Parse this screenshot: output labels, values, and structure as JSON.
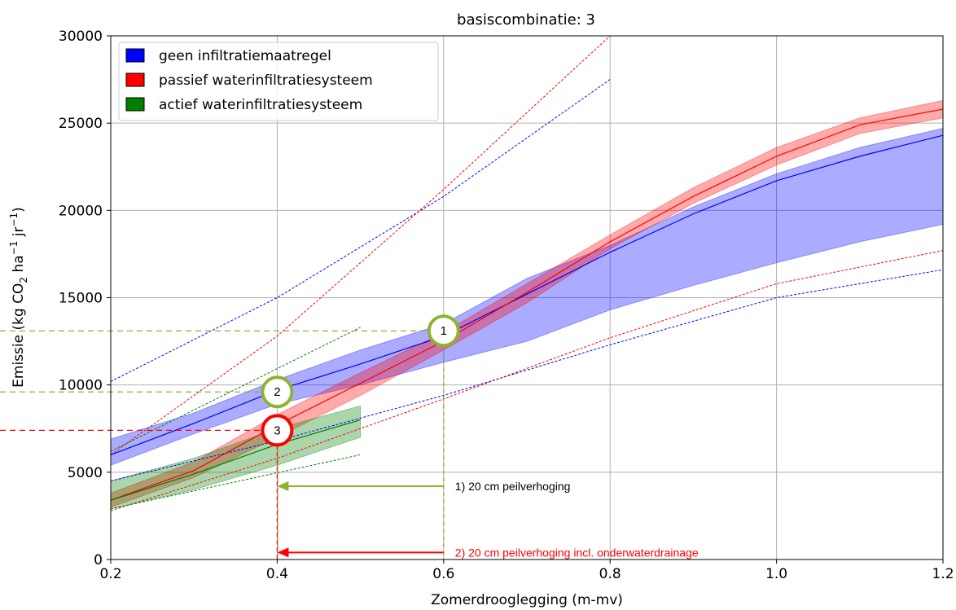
{
  "chart_data": {
    "type": "area",
    "title": "basiscombinatie: 3",
    "xlabel": "Zomerdrooglegging (m-mv)",
    "ylabel_parts": {
      "prefix": "Emissie (kg CO",
      "sub2": "2",
      "mid": " ha",
      "sup1": "−1",
      "mid2": " jr",
      "sup2": "−1",
      "suffix": ")"
    },
    "xlim": [
      0.2,
      1.2
    ],
    "ylim": [
      0,
      30000
    ],
    "x_ticks": [
      0.2,
      0.4,
      0.6,
      0.8,
      1.0,
      1.2
    ],
    "x_tick_labels": [
      "0.2",
      "0.4",
      "0.6",
      "0.8",
      "1.0",
      "1.2"
    ],
    "y_ticks": [
      0,
      5000,
      10000,
      15000,
      20000,
      25000,
      30000
    ],
    "y_tick_labels": [
      "0",
      "5000",
      "10000",
      "15000",
      "20000",
      "25000",
      "30000"
    ],
    "grid": true,
    "legend_position": "top-left",
    "series": [
      {
        "name": "geen infiltratiemaatregel",
        "color": "#0000ff",
        "x": [
          0.2,
          0.3,
          0.4,
          0.5,
          0.6,
          0.7,
          0.8,
          0.9,
          1.0,
          1.1,
          1.2
        ],
        "mean": [
          6000,
          7800,
          9700,
          11200,
          12800,
          15200,
          17600,
          19800,
          21700,
          23100,
          24300
        ],
        "lower": [
          5400,
          7200,
          8900,
          10000,
          11300,
          12500,
          14300,
          15700,
          17000,
          18200,
          19200
        ],
        "upper": [
          6900,
          8400,
          10300,
          12000,
          13500,
          16100,
          18000,
          20200,
          22100,
          23600,
          24700
        ],
        "dash_low": {
          "x": [
            0.2,
            0.4,
            0.6,
            0.8,
            1.0,
            1.2
          ],
          "y": [
            4500,
            6800,
            9400,
            12300,
            15000,
            16600
          ]
        },
        "dash_high": {
          "x": [
            0.2,
            0.4,
            0.6,
            0.8
          ],
          "y": [
            10200,
            15000,
            20800,
            27500
          ]
        }
      },
      {
        "name": "passief waterinfiltratiesysteem",
        "color": "#ff0000",
        "x": [
          0.2,
          0.3,
          0.4,
          0.5,
          0.6,
          0.7,
          0.8,
          0.9,
          1.0,
          1.1,
          1.2
        ],
        "mean": [
          3400,
          5100,
          7700,
          10100,
          12500,
          15300,
          18200,
          20800,
          23100,
          24900,
          25800
        ],
        "lower": [
          3000,
          4700,
          7000,
          9400,
          12000,
          14700,
          17800,
          20400,
          22600,
          24400,
          25300
        ],
        "upper": [
          3800,
          5600,
          8300,
          10700,
          13000,
          15800,
          18600,
          21300,
          23600,
          25300,
          26300
        ],
        "dash_low": {
          "x": [
            0.2,
            0.4,
            0.6,
            0.8,
            1.0,
            1.2
          ],
          "y": [
            2800,
            5800,
            9200,
            12700,
            15800,
            17700
          ]
        },
        "dash_high": {
          "x": [
            0.2,
            0.4,
            0.6,
            0.8
          ],
          "y": [
            6000,
            12800,
            21200,
            30000
          ]
        }
      },
      {
        "name": "actief waterinfiltratiesysteem",
        "color": "#008000",
        "x": [
          0.2,
          0.3,
          0.4,
          0.5
        ],
        "mean": [
          3400,
          4900,
          6600,
          8000
        ],
        "lower": [
          2900,
          4000,
          5400,
          7000
        ],
        "upper": [
          4500,
          5800,
          7500,
          8800
        ],
        "dash_low": {
          "x": [
            0.2,
            0.5
          ],
          "y": [
            2900,
            6000
          ]
        },
        "dash_high": {
          "x": [
            0.2,
            0.5
          ],
          "y": [
            6200,
            13300
          ]
        }
      }
    ],
    "markers": [
      {
        "label": "1",
        "x": 0.6,
        "y": 13100,
        "color": "#8db32f"
      },
      {
        "label": "2",
        "x": 0.4,
        "y": 9600,
        "color": "#8db32f"
      },
      {
        "label": "3",
        "x": 0.4,
        "y": 7400,
        "color": "#ff0000"
      }
    ],
    "reference_lines": [
      {
        "y": 13100,
        "x_end": 0.6,
        "color": "#8db32f"
      },
      {
        "y": 9600,
        "x_end": 0.4,
        "color": "#8db32f"
      },
      {
        "y": 7400,
        "x_end": 0.4,
        "color": "#ff0000"
      }
    ],
    "annotations": [
      {
        "text": "1) 20 cm peilverhoging",
        "from_x": 0.6,
        "to_x": 0.4,
        "y": 4200,
        "color": "#8db32f",
        "text_color": "#000000"
      },
      {
        "text": "2) 20 cm peilverhoging incl. onderwaterdrainage",
        "from_x": 0.6,
        "to_x": 0.4,
        "y": 400,
        "color": "#ff0000",
        "text_color": "#ff0000"
      }
    ]
  }
}
